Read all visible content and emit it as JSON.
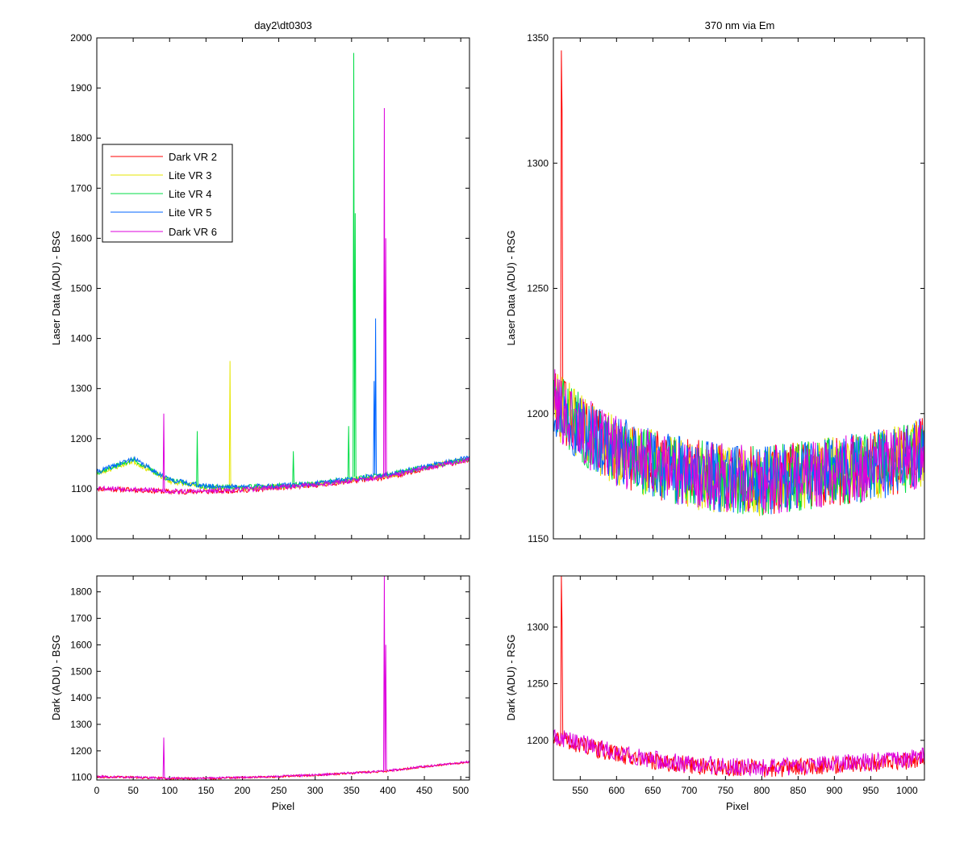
{
  "figure": {
    "background": "#ffffff"
  },
  "chart_data": [
    {
      "id": "top-left",
      "type": "line",
      "title": "day2\\dt0303",
      "xlabel": "",
      "ylabel": "Laser Data (ADU) - BSG",
      "xlim": [
        0,
        512
      ],
      "ylim": [
        1000,
        2000
      ],
      "xticks": [
        0,
        50,
        100,
        150,
        200,
        250,
        300,
        350,
        400,
        450,
        500
      ],
      "xtick_labels_visible": false,
      "yticks": [
        1000,
        1100,
        1200,
        1300,
        1400,
        1500,
        1600,
        1700,
        1800,
        1900,
        2000
      ],
      "ytick_labels": [
        "1000",
        "1100",
        "1200",
        "1300",
        "1400",
        "1500",
        "1600",
        "1700",
        "1800",
        "1900",
        "2000"
      ],
      "legend": {
        "placement": "upper-left",
        "entries": [
          {
            "name": "Dark VR 2",
            "color": "#ff0000"
          },
          {
            "name": "Lite VR 3",
            "color": "#e6e600"
          },
          {
            "name": "Lite VR 4",
            "color": "#00dd44"
          },
          {
            "name": "Lite VR 5",
            "color": "#0066ff"
          },
          {
            "name": "Dark VR 6",
            "color": "#dd00dd"
          }
        ]
      },
      "series": [
        {
          "name": "Dark VR 2",
          "color": "#ff0000",
          "noise": 5,
          "seed": 11,
          "x": [
            0,
            50,
            100,
            150,
            200,
            250,
            300,
            350,
            400,
            450,
            512
          ],
          "y": [
            1100,
            1098,
            1094,
            1094,
            1097,
            1102,
            1107,
            1115,
            1123,
            1140,
            1158
          ],
          "spikes": []
        },
        {
          "name": "Lite VR 3",
          "color": "#e6e600",
          "noise": 5,
          "seed": 23,
          "x": [
            0,
            50,
            100,
            150,
            200,
            250,
            300,
            350,
            400,
            450,
            512
          ],
          "y": [
            1130,
            1155,
            1115,
            1102,
            1102,
            1104,
            1108,
            1118,
            1126,
            1142,
            1160
          ],
          "spikes": [
            {
              "x": 183,
              "y": 1355
            }
          ]
        },
        {
          "name": "Lite VR 4",
          "color": "#00dd44",
          "noise": 5,
          "seed": 37,
          "x": [
            0,
            50,
            100,
            150,
            200,
            250,
            300,
            350,
            400,
            450,
            512
          ],
          "y": [
            1132,
            1158,
            1117,
            1104,
            1103,
            1106,
            1110,
            1120,
            1128,
            1143,
            1160
          ],
          "spikes": [
            {
              "x": 138,
              "y": 1215
            },
            {
              "x": 270,
              "y": 1175
            },
            {
              "x": 346,
              "y": 1225
            },
            {
              "x": 353,
              "y": 1970
            },
            {
              "x": 355,
              "y": 1650
            }
          ]
        },
        {
          "name": "Lite VR 5",
          "color": "#0066ff",
          "noise": 5,
          "seed": 41,
          "x": [
            0,
            50,
            100,
            150,
            200,
            250,
            300,
            350,
            400,
            450,
            512
          ],
          "y": [
            1133,
            1160,
            1118,
            1105,
            1104,
            1106,
            1110,
            1120,
            1128,
            1144,
            1162
          ],
          "spikes": [
            {
              "x": 381,
              "y": 1315
            },
            {
              "x": 383,
              "y": 1440
            }
          ]
        },
        {
          "name": "Dark VR 6",
          "color": "#dd00dd",
          "noise": 5,
          "seed": 53,
          "x": [
            0,
            50,
            100,
            150,
            200,
            250,
            300,
            350,
            400,
            450,
            512
          ],
          "y": [
            1102,
            1099,
            1095,
            1095,
            1098,
            1103,
            1108,
            1116,
            1124,
            1141,
            1158
          ],
          "spikes": [
            {
              "x": 92,
              "y": 1250
            },
            {
              "x": 395,
              "y": 1860
            },
            {
              "x": 397,
              "y": 1600
            }
          ]
        }
      ]
    },
    {
      "id": "top-right",
      "type": "line",
      "title": "370 nm via Em",
      "xlabel": "",
      "ylabel": "Laser Data (ADU) - RSG",
      "xlim": [
        513,
        1024
      ],
      "ylim": [
        1150,
        1350
      ],
      "xticks": [
        550,
        600,
        650,
        700,
        750,
        800,
        850,
        900,
        950,
        1000
      ],
      "xtick_labels_visible": false,
      "yticks": [
        1150,
        1200,
        1250,
        1300,
        1350
      ],
      "ytick_labels": [
        "1150",
        "1200",
        "1250",
        "1300",
        "1350"
      ],
      "series": [
        {
          "name": "Dark VR 2",
          "color": "#ff0000",
          "noise": 14,
          "seed": 61,
          "x": [
            513,
            530,
            560,
            600,
            650,
            700,
            750,
            800,
            850,
            900,
            950,
            1000,
            1024
          ],
          "y": [
            1205,
            1200,
            1192,
            1185,
            1180,
            1176,
            1174,
            1173,
            1175,
            1177,
            1179,
            1182,
            1185
          ],
          "spikes": [
            {
              "x": 524,
              "y": 1345
            },
            {
              "x": 525,
              "y": 1320
            }
          ]
        },
        {
          "name": "Lite VR 3",
          "color": "#e6e600",
          "noise": 14,
          "seed": 71,
          "x": [
            513,
            530,
            560,
            600,
            650,
            700,
            750,
            800,
            850,
            900,
            950,
            1000,
            1024
          ],
          "y": [
            1205,
            1200,
            1192,
            1185,
            1180,
            1176,
            1174,
            1173,
            1175,
            1177,
            1179,
            1182,
            1185
          ],
          "spikes": []
        },
        {
          "name": "Lite VR 4",
          "color": "#00dd44",
          "noise": 14,
          "seed": 83,
          "x": [
            513,
            530,
            560,
            600,
            650,
            700,
            750,
            800,
            850,
            900,
            950,
            1000,
            1024
          ],
          "y": [
            1205,
            1200,
            1192,
            1185,
            1180,
            1176,
            1174,
            1173,
            1175,
            1177,
            1179,
            1182,
            1185
          ],
          "spikes": []
        },
        {
          "name": "Lite VR 5",
          "color": "#0066ff",
          "noise": 14,
          "seed": 97,
          "x": [
            513,
            530,
            560,
            600,
            650,
            700,
            750,
            800,
            850,
            900,
            950,
            1000,
            1024
          ],
          "y": [
            1205,
            1200,
            1192,
            1185,
            1180,
            1176,
            1174,
            1173,
            1175,
            1177,
            1179,
            1182,
            1185
          ],
          "spikes": []
        },
        {
          "name": "Dark VR 6",
          "color": "#dd00dd",
          "noise": 14,
          "seed": 101,
          "x": [
            513,
            530,
            560,
            600,
            650,
            700,
            750,
            800,
            850,
            900,
            950,
            1000,
            1024
          ],
          "y": [
            1205,
            1200,
            1192,
            1185,
            1180,
            1176,
            1174,
            1173,
            1175,
            1177,
            1179,
            1182,
            1185
          ],
          "spikes": []
        }
      ]
    },
    {
      "id": "bottom-left",
      "type": "line",
      "title": "",
      "xlabel": "Pixel",
      "ylabel": "Dark (ADU) - BSG",
      "xlim": [
        0,
        512
      ],
      "ylim": [
        1090,
        1860
      ],
      "xticks": [
        0,
        50,
        100,
        150,
        200,
        250,
        300,
        350,
        400,
        450,
        500
      ],
      "xtick_labels_visible": true,
      "xtick_labels": [
        "0",
        "50",
        "100",
        "150",
        "200",
        "250",
        "300",
        "350",
        "400",
        "450",
        "500"
      ],
      "yticks": [
        1100,
        1200,
        1300,
        1400,
        1500,
        1600,
        1700,
        1800
      ],
      "ytick_labels": [
        "1100",
        "1200",
        "1300",
        "1400",
        "1500",
        "1600",
        "1700",
        "1800"
      ],
      "series": [
        {
          "name": "Dark VR 2",
          "color": "#ff0000",
          "noise": 4,
          "seed": 113,
          "x": [
            0,
            50,
            100,
            150,
            200,
            250,
            300,
            350,
            400,
            450,
            512
          ],
          "y": [
            1102,
            1100,
            1096,
            1096,
            1099,
            1103,
            1108,
            1116,
            1124,
            1140,
            1158
          ],
          "spikes": []
        },
        {
          "name": "Dark VR 6",
          "color": "#dd00dd",
          "noise": 4,
          "seed": 127,
          "x": [
            0,
            50,
            100,
            150,
            200,
            250,
            300,
            350,
            400,
            450,
            512
          ],
          "y": [
            1103,
            1101,
            1097,
            1097,
            1100,
            1104,
            1109,
            1117,
            1125,
            1141,
            1159
          ],
          "spikes": [
            {
              "x": 92,
              "y": 1250
            },
            {
              "x": 395,
              "y": 1860
            },
            {
              "x": 397,
              "y": 1600
            }
          ]
        }
      ]
    },
    {
      "id": "bottom-right",
      "type": "line",
      "title": "",
      "xlabel": "Pixel",
      "ylabel": "Dark (ADU) - RSG",
      "xlim": [
        513,
        1024
      ],
      "ylim": [
        1165,
        1345
      ],
      "xticks": [
        550,
        600,
        650,
        700,
        750,
        800,
        850,
        900,
        950,
        1000
      ],
      "xtick_labels_visible": true,
      "xtick_labels": [
        "550",
        "600",
        "650",
        "700",
        "750",
        "800",
        "850",
        "900",
        "950",
        "1000"
      ],
      "yticks": [
        1200,
        1250,
        1300
      ],
      "ytick_labels": [
        "1200",
        "1250",
        "1300"
      ],
      "series": [
        {
          "name": "Dark VR 2",
          "color": "#ff0000",
          "noise": 8,
          "seed": 131,
          "x": [
            513,
            530,
            560,
            600,
            650,
            700,
            750,
            800,
            850,
            900,
            950,
            1000,
            1024
          ],
          "y": [
            1203,
            1200,
            1195,
            1188,
            1182,
            1178,
            1176,
            1175,
            1176,
            1178,
            1180,
            1182,
            1185
          ],
          "spikes": [
            {
              "x": 524,
              "y": 1345
            },
            {
              "x": 525,
              "y": 1300
            }
          ]
        },
        {
          "name": "Dark VR 6",
          "color": "#dd00dd",
          "noise": 8,
          "seed": 149,
          "x": [
            513,
            530,
            560,
            600,
            650,
            700,
            750,
            800,
            850,
            900,
            950,
            1000,
            1024
          ],
          "y": [
            1204,
            1201,
            1196,
            1189,
            1183,
            1179,
            1177,
            1176,
            1177,
            1179,
            1181,
            1183,
            1186
          ],
          "spikes": []
        }
      ]
    }
  ]
}
